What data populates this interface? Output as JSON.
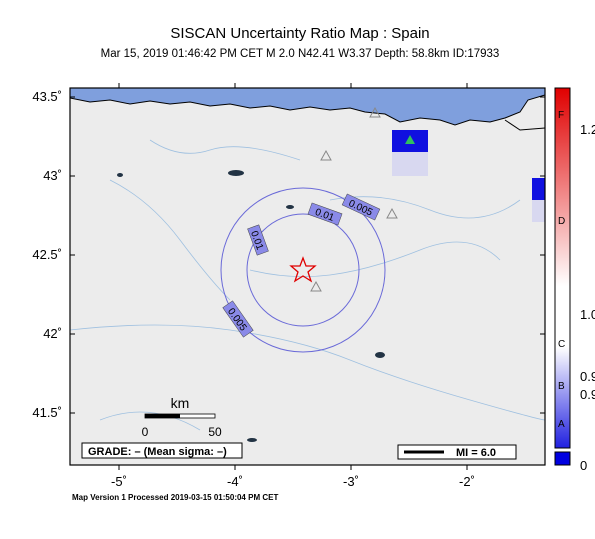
{
  "title": "SISCAN Uncertainty Ratio Map : Spain",
  "subtitle": "Mar 15, 2019 01:46:42 PM CET   M 2.0   N42.41 W3.37   Depth: 58.8km   ID:17933",
  "lat_ticks": [
    {
      "value": 43.5,
      "label": "43.5˚"
    },
    {
      "value": 43,
      "label": "43˚"
    },
    {
      "value": 42.5,
      "label": "42.5˚"
    },
    {
      "value": 42,
      "label": "42˚"
    },
    {
      "value": 41.5,
      "label": "41.5˚"
    }
  ],
  "lon_ticks": [
    {
      "value": -5,
      "label": "-5˚"
    },
    {
      "value": -4,
      "label": "-4˚"
    },
    {
      "value": -3,
      "label": "-3˚"
    },
    {
      "value": -2,
      "label": "-2˚"
    }
  ],
  "contour_labels": [
    "0.005",
    "0.01",
    "0.01",
    "0.005"
  ],
  "scale": {
    "unit": "km",
    "start": "0",
    "end": "50"
  },
  "grade": "GRADE: – (Mean sigma: –)",
  "mi": "MI = 6.0",
  "footer": "Map Version 1 Processed 2019-03-15 01:50:04 PM CET",
  "colorbar": {
    "letters": [
      "F",
      "D",
      "C",
      "B",
      "A"
    ],
    "labels": [
      "1.2",
      "1.0",
      "0.9",
      "0.9",
      "0"
    ]
  }
}
